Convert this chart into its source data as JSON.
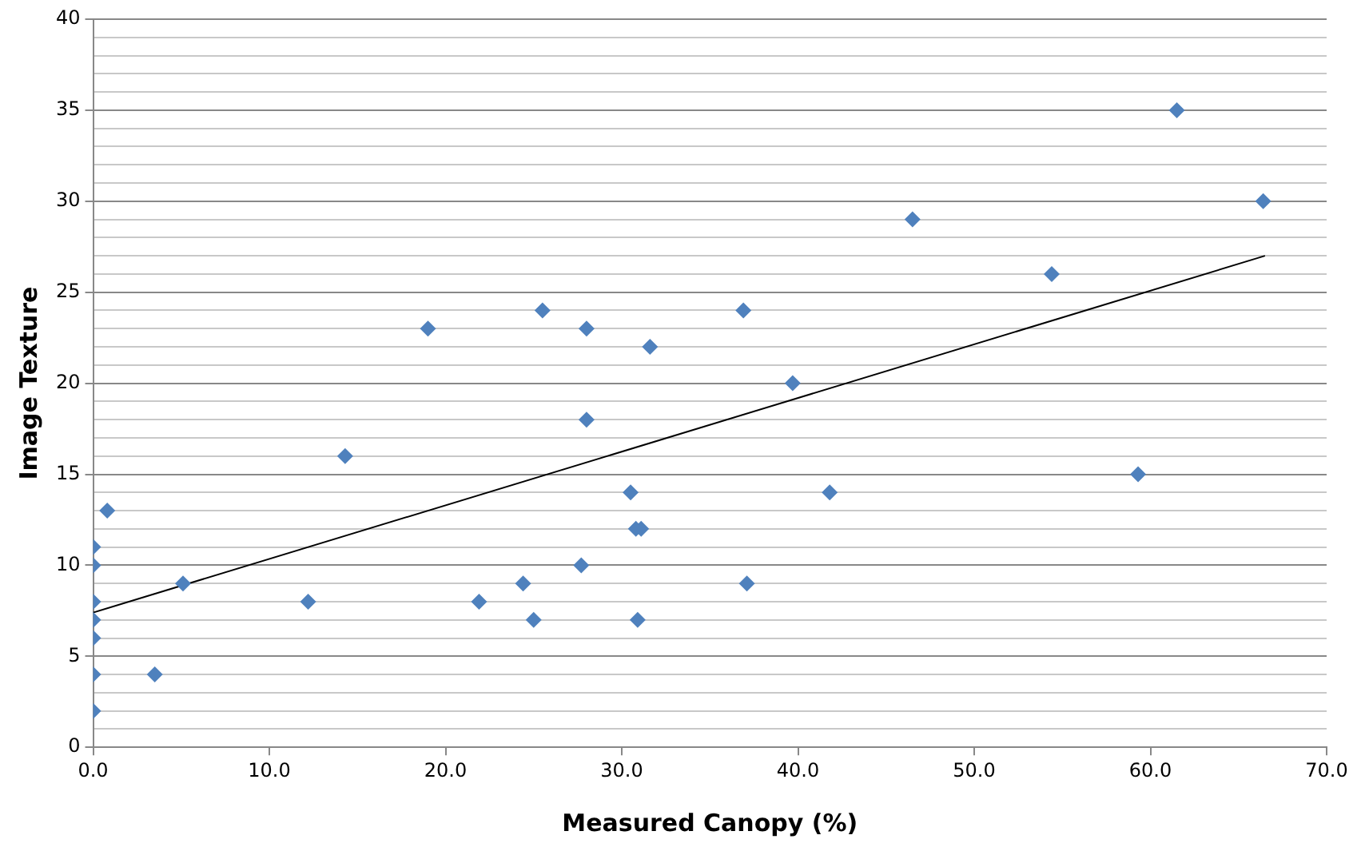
{
  "chart_data": {
    "type": "scatter",
    "xlabel": "Measured Canopy (%)",
    "ylabel": "Image Texture",
    "x": [
      0,
      0,
      0.8,
      0,
      0,
      0,
      0,
      0,
      3.5,
      5.1,
      12.2,
      14.3,
      19,
      21.9,
      24.4,
      25,
      25.5,
      28,
      28,
      27.7,
      30.5,
      30.8,
      31.1,
      30.9,
      31.6,
      36.9,
      37.1,
      39.7,
      41.8,
      46.5,
      54.4,
      59.3,
      61.5,
      66.4
    ],
    "series": [
      {
        "color": "#4f81bd",
        "marker": "diamond",
        "values": [
          11,
          10,
          13,
          8,
          7,
          6,
          4,
          2,
          4,
          9,
          8,
          16,
          23,
          8,
          9,
          7,
          24,
          23,
          18,
          10,
          14,
          12,
          12,
          7,
          22,
          24,
          9,
          20,
          14,
          29,
          26,
          15,
          35,
          30
        ]
      },
      {
        "type": "line",
        "color": "#000000",
        "marker": "none",
        "x": [
          0,
          66.5
        ],
        "values": [
          7.4,
          27.0
        ]
      }
    ],
    "xlim": [
      0,
      70
    ],
    "ylim": [
      0,
      40
    ],
    "xticks": [
      {
        "value": 0,
        "label": "0.0"
      },
      {
        "value": 10,
        "label": "10.0"
      },
      {
        "value": 20,
        "label": "20.0"
      },
      {
        "value": 30,
        "label": "30.0"
      },
      {
        "value": 40,
        "label": "40.0"
      },
      {
        "value": 50,
        "label": "50.0"
      },
      {
        "value": 60,
        "label": "60.0"
      },
      {
        "value": 70,
        "label": "70.0"
      }
    ],
    "yticks": [
      0,
      {
        "value": 1,
        "label": null
      },
      {
        "value": 2,
        "label": null
      },
      {
        "value": 3,
        "label": null
      },
      {
        "value": 4,
        "label": null
      },
      5,
      {
        "value": 6,
        "label": null
      },
      {
        "value": 7,
        "label": null
      },
      {
        "value": 8,
        "label": null
      },
      {
        "value": 9,
        "label": null
      },
      10,
      {
        "value": 11,
        "label": null
      },
      {
        "value": 12,
        "label": null
      },
      {
        "value": 13,
        "label": null
      },
      {
        "value": 14,
        "label": null
      },
      15,
      {
        "value": 16,
        "label": null
      },
      {
        "value": 17,
        "label": null
      },
      {
        "value": 18,
        "label": null
      },
      {
        "value": 19,
        "label": null
      },
      20,
      {
        "value": 21,
        "label": null
      },
      {
        "value": 22,
        "label": null
      },
      {
        "value": 23,
        "label": null
      },
      {
        "value": 24,
        "label": null
      },
      25,
      {
        "value": 26,
        "label": null
      },
      {
        "value": 27,
        "label": null
      },
      {
        "value": 28,
        "label": null
      },
      {
        "value": 29,
        "label": null
      },
      30,
      {
        "value": 31,
        "label": null
      },
      {
        "value": 32,
        "label": null
      },
      {
        "value": 33,
        "label": null
      },
      {
        "value": 34,
        "label": null
      },
      35,
      {
        "value": 36,
        "label": null
      },
      {
        "value": 37,
        "label": null
      },
      {
        "value": 38,
        "label": null
      },
      {
        "value": 39,
        "label": null
      },
      40
    ],
    "grid": "y",
    "legend": false
  }
}
